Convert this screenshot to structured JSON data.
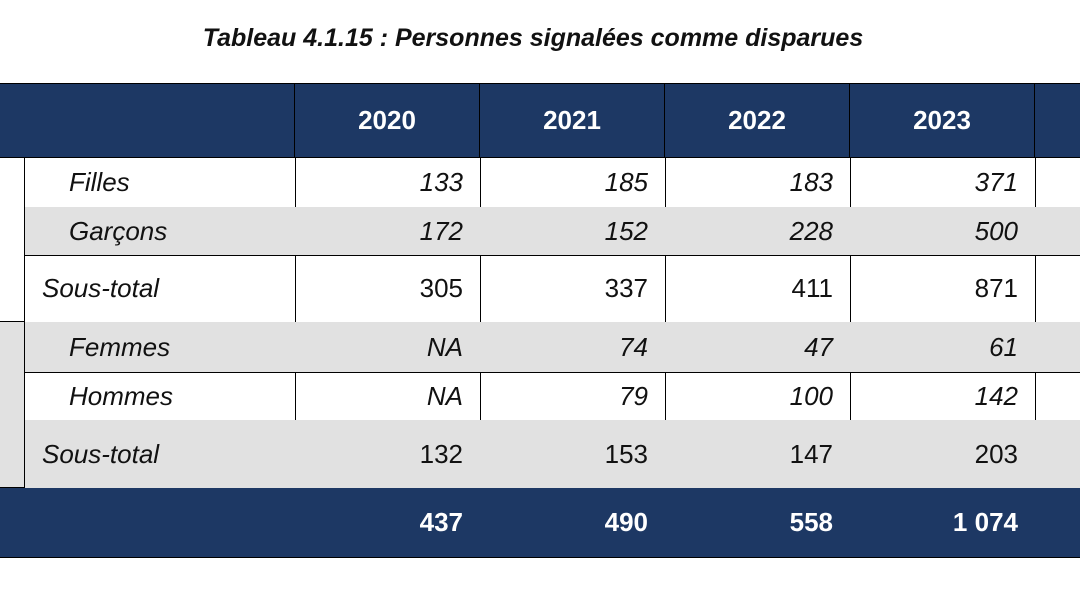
{
  "title": "Tableau 4.1.15 : Personnes signalées comme disparues",
  "table": {
    "columns": [
      "2020",
      "2021",
      "2022",
      "2023"
    ],
    "rows": [
      {
        "label": "Filles",
        "values": [
          133,
          185,
          183,
          371
        ]
      },
      {
        "label": "Garçons",
        "values": [
          172,
          152,
          228,
          500
        ]
      },
      {
        "label": "Sous-total",
        "values": [
          305,
          337,
          411,
          871
        ]
      },
      {
        "label": "Femmes",
        "values": [
          "NA",
          74,
          47,
          61
        ]
      },
      {
        "label": "Hommes",
        "values": [
          "NA",
          79,
          100,
          142
        ]
      },
      {
        "label": "Sous-total",
        "values": [
          132,
          153,
          147,
          203
        ]
      }
    ],
    "total": [
      437,
      490,
      558,
      "1 074"
    ]
  }
}
